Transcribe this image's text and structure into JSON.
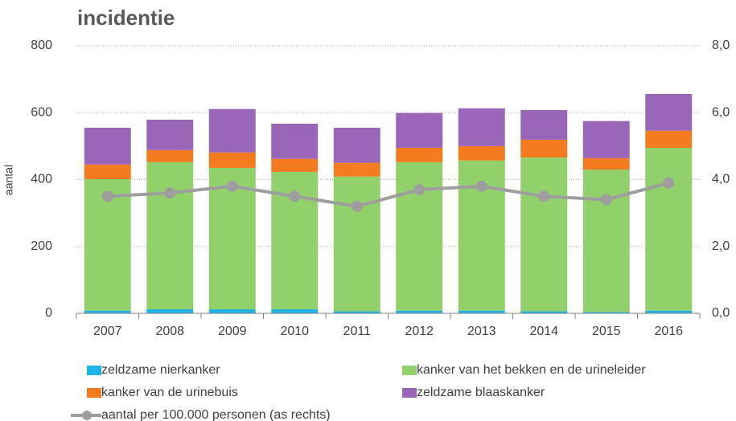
{
  "chart_data": {
    "type": "bar",
    "title": "incidentie",
    "ylabel": "aantal",
    "categories": [
      "2007",
      "2008",
      "2009",
      "2010",
      "2011",
      "2012",
      "2013",
      "2014",
      "2015",
      "2016"
    ],
    "stacked": true,
    "series": [
      {
        "name": "zeldzame nierkanker",
        "color": "#1fb4e6",
        "values": [
          8,
          12,
          12,
          12,
          6,
          8,
          8,
          6,
          4,
          8
        ]
      },
      {
        "name": "kanker van het bekken en de urineleider",
        "color": "#92d06c",
        "values": [
          393,
          440,
          423,
          411,
          403,
          444,
          449,
          460,
          426,
          487
        ]
      },
      {
        "name": "kanker van de urinebuis",
        "color": "#f47b20",
        "values": [
          44,
          36,
          46,
          39,
          41,
          43,
          43,
          53,
          34,
          51
        ]
      },
      {
        "name": "zeldzame blaaskanker",
        "color": "#9966b8",
        "values": [
          110,
          91,
          130,
          105,
          105,
          104,
          113,
          89,
          111,
          110
        ]
      },
      {
        "name": "aantal per 100.000 personen (as rechts)",
        "color": "#9e9e9e",
        "type": "line",
        "axis": "y2",
        "values": [
          3.5,
          3.6,
          3.8,
          3.5,
          3.2,
          3.7,
          3.8,
          3.5,
          3.4,
          3.9
        ]
      }
    ],
    "ylim": [
      0,
      800
    ],
    "yticks": [
      0,
      200,
      400,
      600,
      800
    ],
    "y2lim": [
      0,
      8
    ],
    "y2ticks": [
      {
        "value": 0,
        "label": "0,0"
      },
      {
        "value": 2,
        "label": "2,0"
      },
      {
        "value": 4,
        "label": "4,0"
      },
      {
        "value": 6,
        "label": "6,0"
      },
      {
        "value": 8,
        "label": "8,0"
      }
    ],
    "grid": true,
    "legend": "bottom"
  }
}
